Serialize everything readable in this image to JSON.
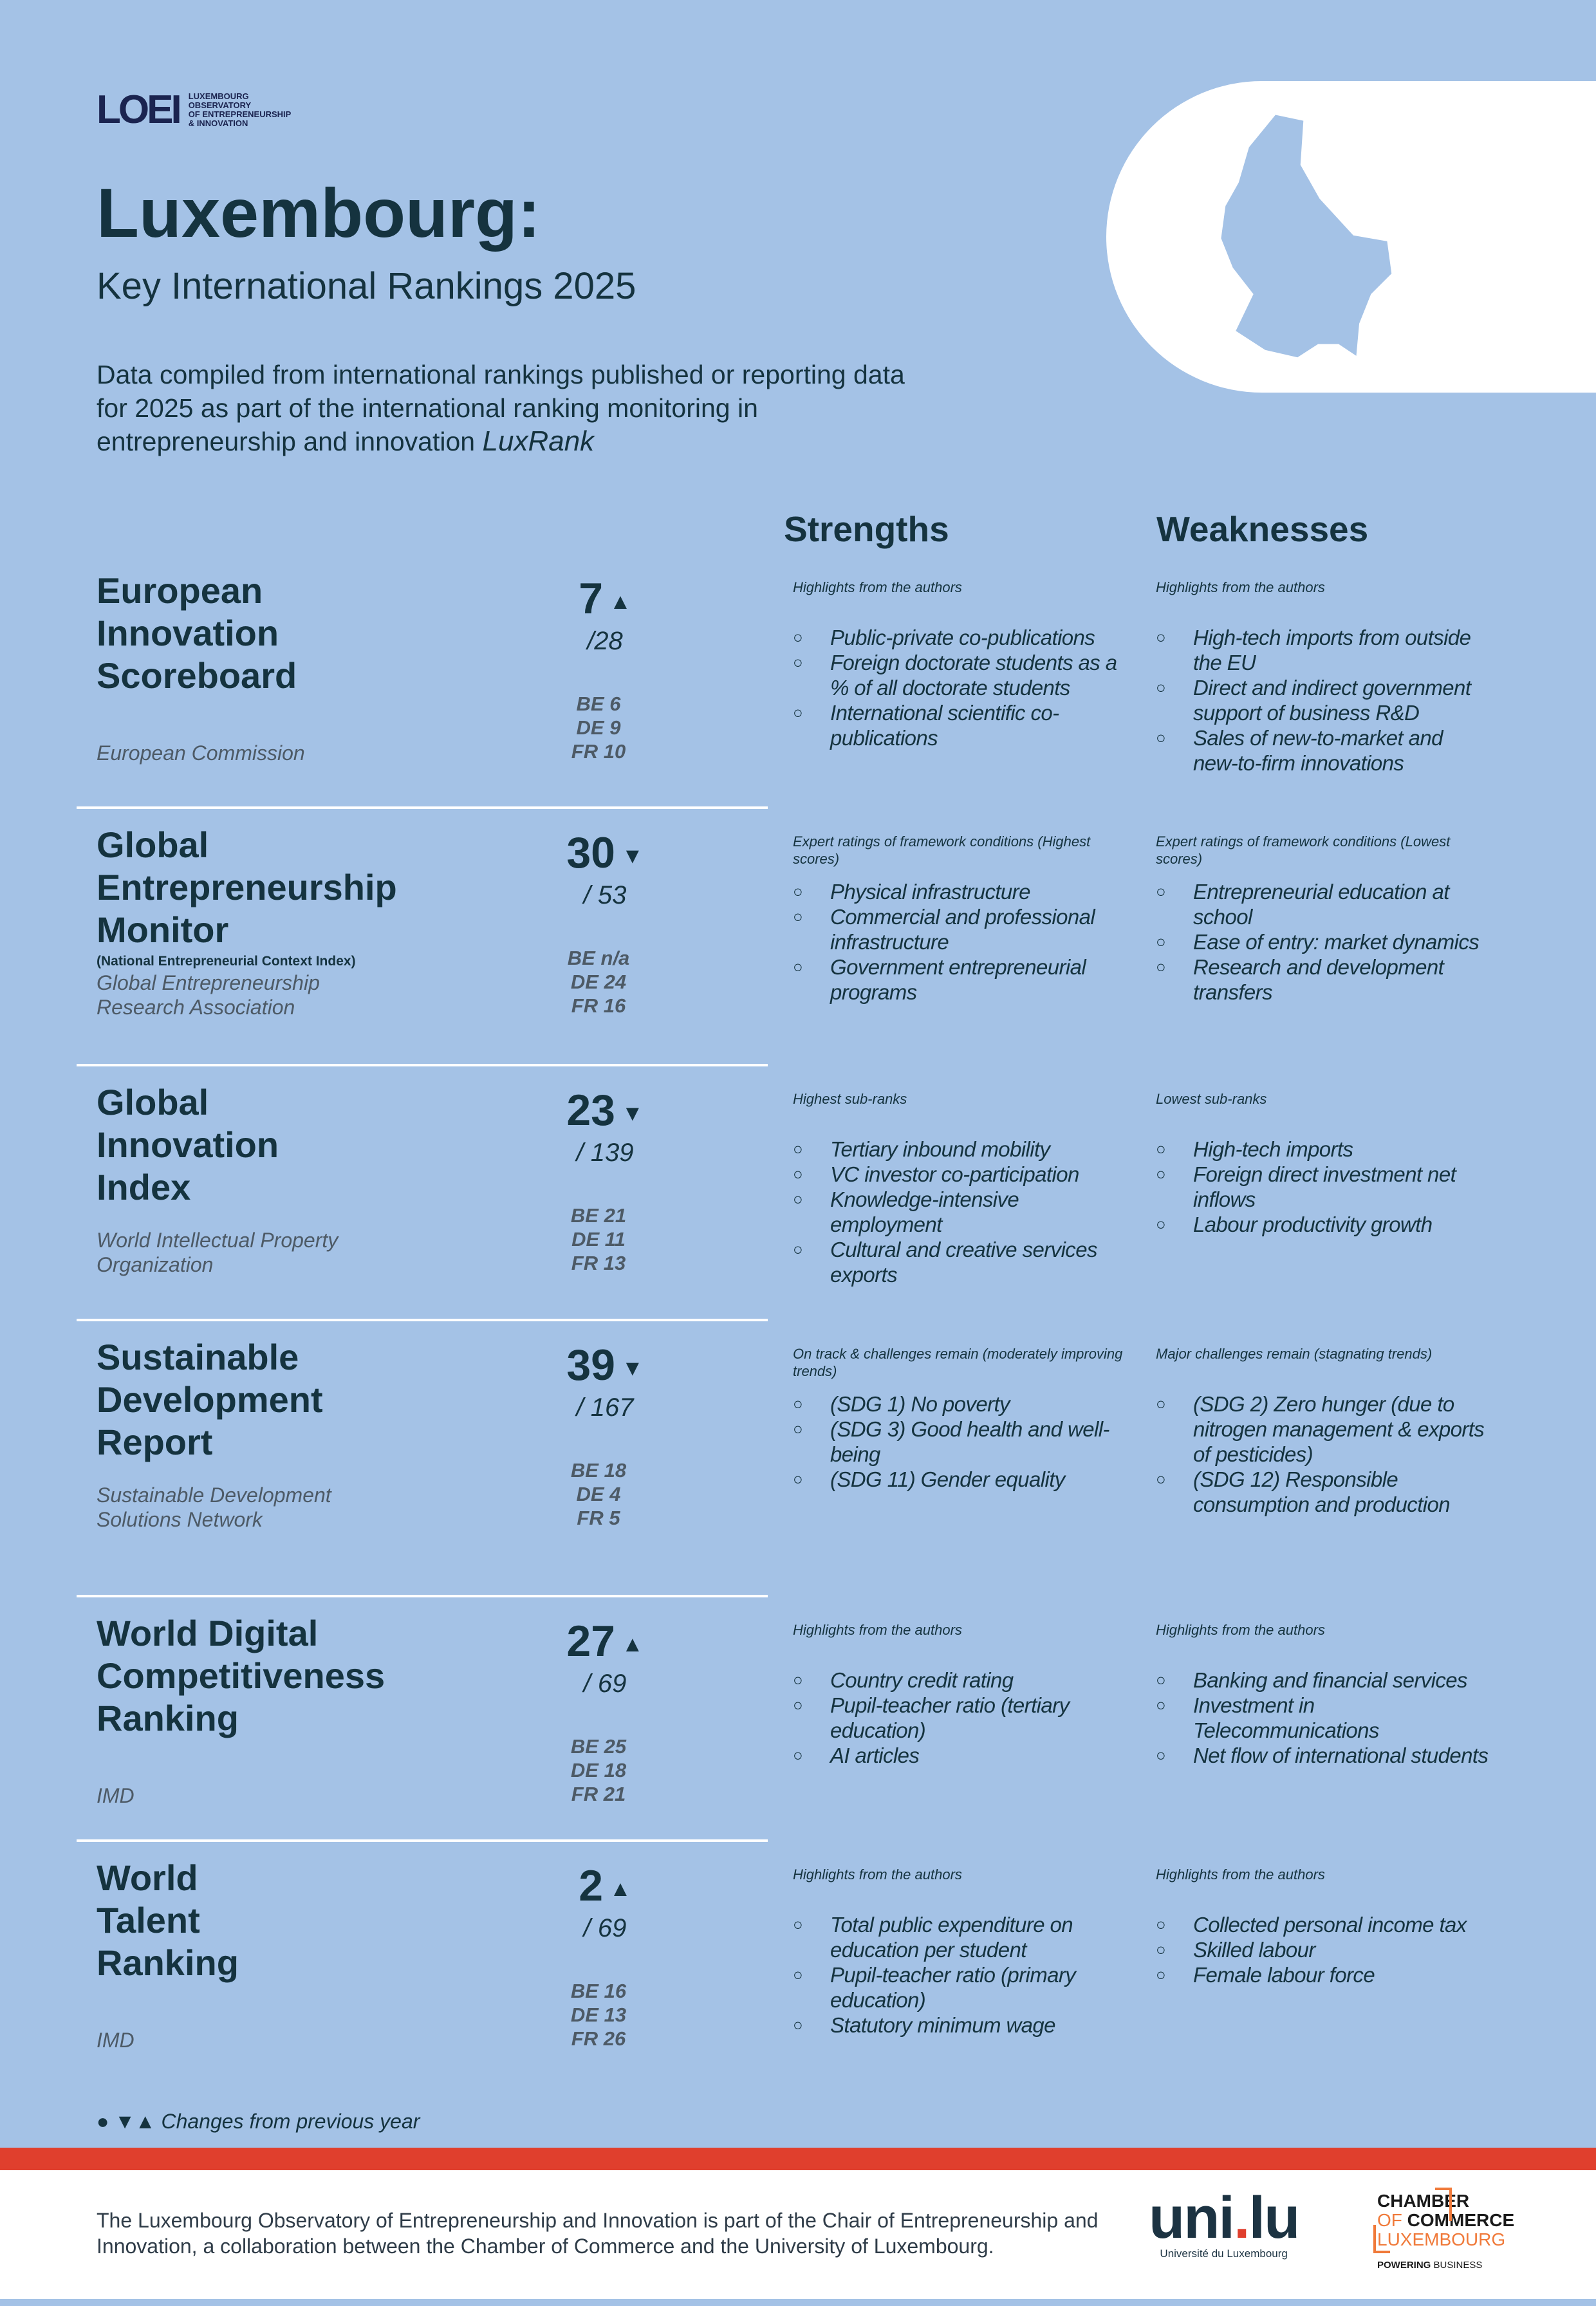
{
  "logo": {
    "mark": "LOEI",
    "lines": [
      "LUXEMBOURG",
      "OBSERVATORY",
      "OF ENTREPRENEURSHIP",
      "& INNOVATION"
    ]
  },
  "header": {
    "title": "Luxembourg:",
    "subtitle": "Key International Rankings 2025",
    "description": "Data compiled from international rankings published or reporting data for 2025 as part of the international ranking monitoring in entrepreneurship and innovation",
    "description_emph": "LuxRank"
  },
  "columns": {
    "strengths": "Strengths",
    "weaknesses": "Weaknesses"
  },
  "colors": {
    "background": "#a4c2e6",
    "text": "#15333f",
    "accent_red": "#e03f2d",
    "orange": "#f07a3a"
  },
  "rankings": [
    {
      "title": "European Innovation Scoreboard",
      "title_lines": [
        "European",
        "Innovation",
        "Scoreboard"
      ],
      "subtitle": "",
      "rank": "7",
      "change": "up",
      "change_symbol": "▲",
      "out_of": "/28",
      "comparison": [
        "BE 6",
        "DE 9",
        "FR 10"
      ],
      "source": "European Commission",
      "strengths": {
        "label": "Highlights from the authors",
        "items": [
          "Public-private co-publications",
          "Foreign doctorate students as a % of all doctorate students",
          "International scientific co-publications"
        ]
      },
      "weaknesses": {
        "label": "Highlights from the authors",
        "items": [
          "High-tech imports from outside the EU",
          "Direct and indirect government support of business R&D",
          "Sales of new-to-market and new-to-firm innovations"
        ]
      }
    },
    {
      "title": "Global Entrepreneurship Monitor",
      "title_lines": [
        "Global",
        "Entrepreneurship",
        "Monitor"
      ],
      "subtitle": "(National Entrepreneurial Context Index)",
      "rank": "30",
      "change": "down",
      "change_symbol": "▼",
      "out_of": "/ 53",
      "comparison": [
        "BE n/a",
        "DE 24",
        "FR 16"
      ],
      "source": "Global Entrepreneurship Research Association",
      "strengths": {
        "label": "Expert ratings of framework conditions (Highest scores)",
        "items": [
          "Physical infrastructure",
          "Commercial and professional infrastructure",
          "Government entrepreneurial programs"
        ]
      },
      "weaknesses": {
        "label": "Expert ratings of framework conditions (Lowest scores)",
        "items": [
          "Entrepreneurial education at school",
          "Ease of entry: market dynamics",
          "Research and development transfers"
        ]
      }
    },
    {
      "title": "Global Innovation Index",
      "title_lines": [
        "Global",
        "Innovation",
        "Index"
      ],
      "subtitle": "",
      "rank": "23",
      "change": "down",
      "change_symbol": "▼",
      "out_of": "/ 139",
      "comparison": [
        "BE 21",
        "DE 11",
        "FR 13"
      ],
      "source": "World Intellectual Property Organization",
      "strengths": {
        "label": "Highest sub-ranks",
        "items": [
          "Tertiary inbound mobility",
          "VC investor co-participation",
          "Knowledge-intensive employment",
          "Cultural and creative services exports"
        ]
      },
      "weaknesses": {
        "label": "Lowest sub-ranks",
        "items": [
          "High-tech imports",
          "Foreign direct investment net inflows",
          "Labour productivity growth"
        ]
      }
    },
    {
      "title": "Sustainable Development Report",
      "title_lines": [
        "Sustainable",
        "Development",
        "Report"
      ],
      "subtitle": "",
      "rank": "39",
      "change": "down",
      "change_symbol": "▼",
      "out_of": "/ 167",
      "comparison": [
        "BE 18",
        "DE 4",
        "FR 5"
      ],
      "source": "Sustainable Development Solutions Network",
      "strengths": {
        "label": "On track & challenges remain (moderately improving trends)",
        "items": [
          "(SDG 1) No poverty",
          "(SDG 3) Good health and well-being",
          "(SDG 11) Gender equality"
        ]
      },
      "weaknesses": {
        "label": "Major challenges remain (stagnating trends)",
        "items": [
          "(SDG 2) Zero hunger (due to nitrogen management & exports of pesticides)",
          "(SDG 12) Responsible consumption and production"
        ]
      }
    },
    {
      "title": "World Digital Competitiveness Ranking",
      "title_lines": [
        "World Digital",
        "Competitiveness",
        "Ranking"
      ],
      "subtitle": "",
      "rank": "27",
      "change": "up",
      "change_symbol": "▲",
      "out_of": "/ 69",
      "comparison": [
        "BE 25",
        "DE 18",
        "FR 21"
      ],
      "source": "IMD",
      "strengths": {
        "label": "Highlights from the authors",
        "items": [
          "Country credit rating",
          "Pupil-teacher ratio (tertiary education)",
          "AI articles"
        ]
      },
      "weaknesses": {
        "label": "Highlights from the authors",
        "items": [
          "Banking and financial services",
          "Investment in Telecommunications",
          "Net flow of international students"
        ]
      }
    },
    {
      "title": "World Talent Ranking",
      "title_lines": [
        "World",
        "Talent",
        "Ranking"
      ],
      "subtitle": "",
      "rank": "2",
      "change": "up",
      "change_symbol": "▲",
      "out_of": "/ 69",
      "comparison": [
        "BE 16",
        "DE 13",
        "FR 26"
      ],
      "source": "IMD",
      "strengths": {
        "label": "Highlights from the authors",
        "items": [
          "Total public expenditure on education per student",
          "Pupil-teacher ratio (primary education)",
          "Statutory minimum wage"
        ]
      },
      "weaknesses": {
        "label": "Highlights from the authors",
        "items": [
          "Collected personal income tax",
          "Skilled labour",
          "Female labour force"
        ]
      }
    }
  ],
  "legend": {
    "symbols": "● ▼▲",
    "text": "Changes from previous year"
  },
  "footer": {
    "text": "The Luxembourg Observatory of Entrepreneurship and Innovation is part of the Chair of Entrepreneurship and Innovation, a collaboration between the Chamber of Commerce and the University of Luxembourg.",
    "unilu_mark_a": "uni",
    "unilu_dot": ".",
    "unilu_mark_b": "lu",
    "unilu_name": "Université du Luxembourg",
    "cc_line1": "CHAMBER",
    "cc_of": "OF ",
    "cc_commerce": "COMMERCE",
    "cc_lux": "LUXEMBOURG",
    "cc_powering": "POWERING",
    "cc_business": " BUSINESS"
  }
}
